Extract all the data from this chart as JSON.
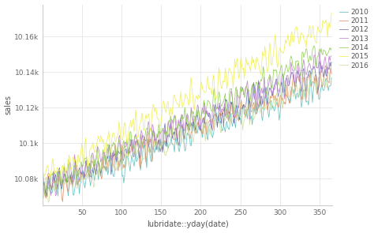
{
  "title": "",
  "xlabel": "lubridate::yday(date)",
  "ylabel": "sales",
  "xlim": [
    1,
    366
  ],
  "ylim": [
    10065,
    10178
  ],
  "yticks": [
    10080,
    10100,
    10120,
    10140,
    10160
  ],
  "ytick_labels": [
    "10.08k",
    "10.1k",
    "10.12k",
    "10.14k",
    "10.16k"
  ],
  "xticks": [
    50,
    100,
    150,
    200,
    250,
    300,
    350
  ],
  "years": [
    "2010",
    "2011",
    "2012",
    "2013",
    "2014",
    "2015",
    "2016"
  ],
  "colors": [
    "#55bbbb",
    "#dd8855",
    "#6666aa",
    "#bb77cc",
    "#88cc44",
    "#eeee44",
    "#ccdd99"
  ],
  "base_values": [
    10073,
    10074,
    10075,
    10076,
    10077,
    10082,
    10073
  ],
  "end_values": [
    10133,
    10138,
    10143,
    10148,
    10153,
    10168,
    10138
  ],
  "noise_scale": 4.5,
  "osc_period": 7,
  "osc_amp": 3.0,
  "background_color": "#ffffff",
  "grid_color": "#e0e0e0",
  "linewidth": 0.55,
  "legend_fontsize": 6.5,
  "axis_fontsize": 7,
  "tick_fontsize": 6.5
}
